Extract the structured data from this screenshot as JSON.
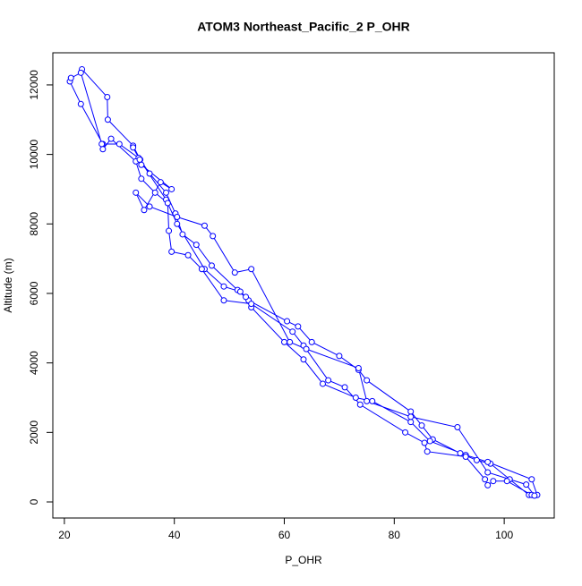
{
  "chart_data": {
    "type": "line",
    "title": "ATOM3 Northeast_Pacific_2 P_OHR",
    "x_label": "P_OHR",
    "y_label": "Altitude (m)",
    "color": "#0000ff",
    "x": [
      23.2,
      27.8,
      27.9,
      32.5,
      33.8,
      35.5,
      38.5,
      40.2,
      41.5,
      44,
      46.8,
      51.5,
      53.5,
      60.5,
      62.5,
      65,
      70,
      73.5,
      75,
      83,
      85,
      87,
      92,
      95,
      97.5,
      101,
      104.5,
      106,
      105,
      97,
      93,
      86.5,
      83,
      76,
      73,
      67,
      63.5,
      60,
      54,
      53,
      52,
      49,
      45.5,
      40.5,
      38.5,
      33.5,
      30,
      27,
      23,
      21,
      21.2,
      23,
      26.8,
      27,
      28.5,
      33,
      34,
      36.5,
      38.8,
      39,
      39.5,
      42.5,
      45,
      49,
      54,
      61.5,
      63.5,
      68,
      71,
      73.8,
      82,
      85.5,
      86,
      93,
      96.5,
      97,
      98,
      100.5,
      105,
      105.5,
      104,
      97,
      91.5,
      83,
      75,
      73.5,
      64,
      61,
      54,
      51,
      47,
      45.5,
      40.5,
      35.5,
      33,
      34.5,
      37.5,
      39.5,
      34,
      33.7,
      32.5
    ],
    "values": [
      12450,
      11650,
      11000,
      10250,
      9850,
      9450,
      8900,
      8300,
      7700,
      7400,
      6800,
      6100,
      5800,
      5200,
      5050,
      4600,
      4200,
      3800,
      3500,
      2600,
      2200,
      1800,
      1400,
      1200,
      1100,
      650,
      200,
      200,
      650,
      1150,
      1350,
      1750,
      2300,
      2900,
      3000,
      3400,
      4100,
      4600,
      5600,
      5900,
      6050,
      6200,
      6700,
      8000,
      8700,
      9900,
      10300,
      10300,
      11450,
      12100,
      12200,
      12350,
      10300,
      10150,
      10450,
      9800,
      9300,
      8900,
      8600,
      7800,
      7200,
      7100,
      6700,
      5800,
      5700,
      4900,
      4500,
      3500,
      3300,
      2800,
      2000,
      1700,
      1450,
      1300,
      650,
      480,
      600,
      600,
      200,
      180,
      500,
      850,
      2150,
      2450,
      2900,
      3850,
      4400,
      4600,
      6700,
      6600,
      7650,
      7950,
      8200,
      8500,
      8900,
      8400,
      9200,
      9000,
      9700,
      9850,
      10200
    ],
    "xlim": [
      17.9,
      109.1
    ],
    "ylim": [
      -463,
      12925
    ],
    "xticks": [
      20,
      40,
      60,
      80,
      100
    ],
    "yticks": [
      0,
      2000,
      4000,
      6000,
      8000,
      10000,
      12000
    ]
  }
}
